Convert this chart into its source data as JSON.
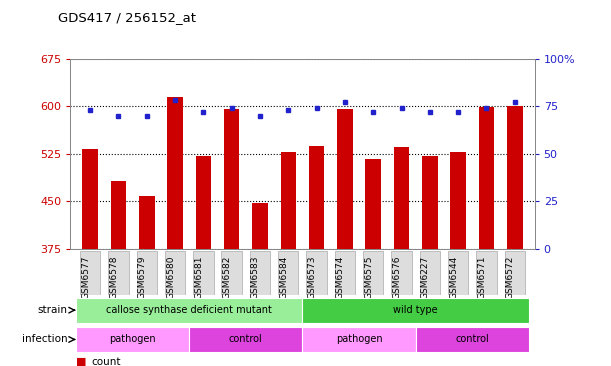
{
  "title": "GDS417 / 256152_at",
  "categories": [
    "GSM6577",
    "GSM6578",
    "GSM6579",
    "GSM6580",
    "GSM6581",
    "GSM6582",
    "GSM6583",
    "GSM6584",
    "GSM6573",
    "GSM6574",
    "GSM6575",
    "GSM6576",
    "GSM6227",
    "GSM6544",
    "GSM6571",
    "GSM6572"
  ],
  "counts": [
    533,
    482,
    458,
    614,
    522,
    595,
    447,
    527,
    537,
    595,
    517,
    535,
    522,
    527,
    598,
    601
  ],
  "percentiles": [
    73,
    70,
    70,
    78,
    72,
    74,
    70,
    73,
    74,
    77,
    72,
    74,
    72,
    72,
    74,
    77
  ],
  "ylim_left": [
    375,
    675
  ],
  "ylim_right": [
    0,
    100
  ],
  "yticks_left": [
    375,
    450,
    525,
    600,
    675
  ],
  "yticks_right": [
    0,
    25,
    50,
    75,
    100
  ],
  "bar_color": "#cc0000",
  "dot_color": "#2222cc",
  "strain_groups": [
    {
      "label": "callose synthase deficient mutant",
      "start": 0,
      "end": 8,
      "color": "#99ee99"
    },
    {
      "label": "wild type",
      "start": 8,
      "end": 16,
      "color": "#44cc44"
    }
  ],
  "infection_groups": [
    {
      "label": "pathogen",
      "start": 0,
      "end": 4,
      "color": "#ff99ff"
    },
    {
      "label": "control",
      "start": 4,
      "end": 8,
      "color": "#dd44dd"
    },
    {
      "label": "pathogen",
      "start": 8,
      "end": 12,
      "color": "#ff99ff"
    },
    {
      "label": "control",
      "start": 12,
      "end": 16,
      "color": "#dd44dd"
    }
  ],
  "left_axis_color": "#cc0000",
  "right_axis_color": "#2222cc",
  "tick_label_bg": "#dddddd",
  "tick_label_edge": "#aaaaaa"
}
